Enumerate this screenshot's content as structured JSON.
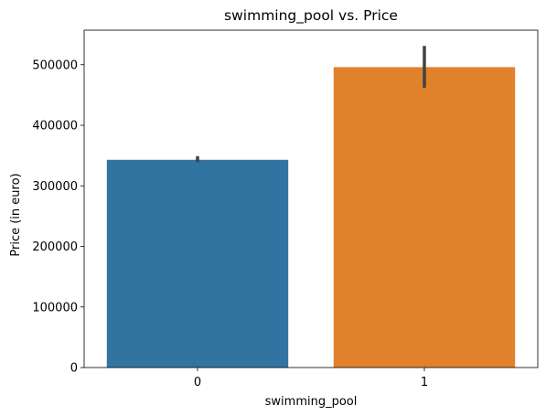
{
  "chart_data": {
    "type": "bar",
    "title": "swimming_pool vs. Price",
    "xlabel": "swimming_pool",
    "ylabel": "Price (in euro)",
    "categories": [
      "0",
      "1"
    ],
    "values": [
      343000,
      496000
    ],
    "error_bars": [
      {
        "low": 339000,
        "high": 349000
      },
      {
        "low": 462000,
        "high": 531000
      }
    ],
    "colors": [
      "#3274a1",
      "#e1812c"
    ],
    "error_color": "#424242",
    "ylim": [
      0,
      557000
    ],
    "yticks": [
      0,
      100000,
      200000,
      300000,
      400000,
      500000
    ],
    "ytick_labels": [
      "0",
      "100000",
      "200000",
      "300000",
      "400000",
      "500000"
    ],
    "grid": false,
    "legend": "none"
  }
}
